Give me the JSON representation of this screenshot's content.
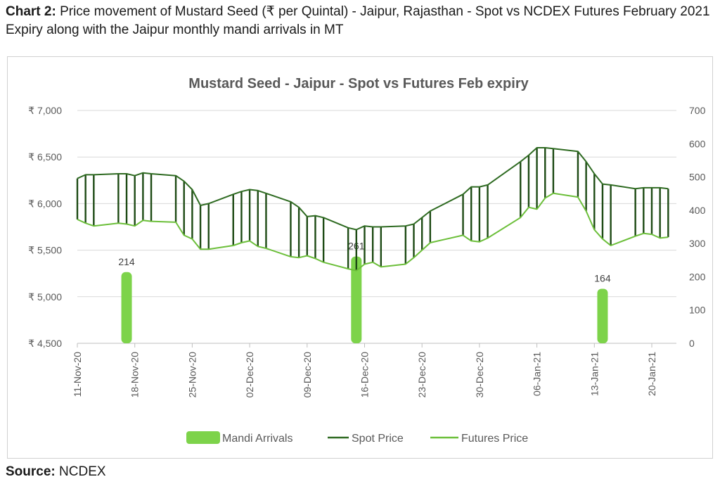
{
  "caption": {
    "label": "Chart 2:",
    "text": "Price movement of Mustard Seed (₹ per Quintal) - Jaipur, Rajasthan - Spot vs NCDEX Futures February 2021 Expiry along with the Jaipur monthly mandi arrivals in MT"
  },
  "source": {
    "label": "Source:",
    "text": "NCDEX"
  },
  "chart_data": {
    "type": "line",
    "title": "Mustard Seed - Jaipur - Spot vs Futures Feb expiry",
    "xlabel": "",
    "ylabel": "",
    "x": [
      "11-Nov-20",
      "12-Nov-20",
      "13-Nov-20",
      "16-Nov-20",
      "17-Nov-20",
      "18-Nov-20",
      "19-Nov-20",
      "20-Nov-20",
      "23-Nov-20",
      "24-Nov-20",
      "25-Nov-20",
      "26-Nov-20",
      "27-Nov-20",
      "30-Nov-20",
      "01-Dec-20",
      "02-Dec-20",
      "03-Dec-20",
      "04-Dec-20",
      "07-Dec-20",
      "08-Dec-20",
      "09-Dec-20",
      "10-Dec-20",
      "11-Dec-20",
      "14-Dec-20",
      "15-Dec-20",
      "16-Dec-20",
      "17-Dec-20",
      "18-Dec-20",
      "21-Dec-20",
      "22-Dec-20",
      "23-Dec-20",
      "24-Dec-20",
      "28-Dec-20",
      "29-Dec-20",
      "30-Dec-20",
      "31-Dec-20",
      "04-Jan-21",
      "05-Jan-21",
      "06-Jan-21",
      "07-Jan-21",
      "08-Jan-21",
      "11-Jan-21",
      "12-Jan-21",
      "13-Jan-21",
      "14-Jan-21",
      "15-Jan-21",
      "18-Jan-21",
      "19-Jan-21",
      "20-Jan-21",
      "21-Jan-21",
      "22-Jan-21"
    ],
    "x_ticks": [
      "11-Nov-20",
      "18-Nov-20",
      "25-Nov-20",
      "02-Dec-20",
      "09-Dec-20",
      "16-Dec-20",
      "23-Dec-20",
      "30-Dec-20",
      "06-Jan-21",
      "13-Jan-21",
      "20-Jan-21"
    ],
    "x_start": "11-Nov-20",
    "x_end": "23-Jan-21",
    "y_left": {
      "ylim": [
        4500,
        7000
      ],
      "ticks": [
        "₹ 4,500",
        "₹ 5,000",
        "₹ 5,500",
        "₹ 6,000",
        "₹ 6,500",
        "₹ 7,000"
      ]
    },
    "y_right": {
      "ylim": [
        0,
        700
      ],
      "ticks": [
        "0",
        "100",
        "200",
        "300",
        "400",
        "500",
        "600",
        "700"
      ]
    },
    "grid": true,
    "legend": "bottom",
    "series": [
      {
        "name": "Spot Price",
        "axis": "left",
        "color": "#2f6b22",
        "values": [
          6270,
          6310,
          6310,
          6320,
          6320,
          6300,
          6330,
          6320,
          6300,
          6240,
          6150,
          5980,
          6000,
          6100,
          6130,
          6150,
          6140,
          6110,
          6020,
          5960,
          5860,
          5870,
          5850,
          5740,
          5720,
          5760,
          5750,
          5750,
          5760,
          5780,
          5850,
          5920,
          6100,
          6180,
          6180,
          6200,
          6450,
          6520,
          6600,
          6600,
          6590,
          6560,
          6450,
          6320,
          6210,
          6200,
          6160,
          6170,
          6170,
          6170,
          6160
        ]
      },
      {
        "name": "Futures Price",
        "axis": "left",
        "color": "#6cbf3a",
        "values": [
          5830,
          5790,
          5760,
          5790,
          5780,
          5760,
          5820,
          5810,
          5800,
          5660,
          5620,
          5510,
          5510,
          5550,
          5580,
          5600,
          5540,
          5520,
          5430,
          5420,
          5440,
          5410,
          5370,
          5300,
          5280,
          5350,
          5370,
          5320,
          5350,
          5420,
          5500,
          5580,
          5660,
          5600,
          5590,
          5630,
          5850,
          5960,
          5940,
          6060,
          6110,
          6070,
          5920,
          5720,
          5620,
          5550,
          5650,
          5680,
          5670,
          5630,
          5640
        ]
      },
      {
        "name": "Mandi Arrivals",
        "axis": "right",
        "type": "bar",
        "color": "#7dd34a",
        "points": [
          {
            "x": "17-Nov-20",
            "value": 214
          },
          {
            "x": "15-Dec-20",
            "value": 261
          },
          {
            "x": "14-Jan-21",
            "value": 164
          }
        ],
        "labels": [
          "214",
          "261",
          "164"
        ]
      }
    ],
    "legend_entries": [
      "Mandi Arrivals",
      "Spot Price",
      "Futures Price"
    ]
  }
}
